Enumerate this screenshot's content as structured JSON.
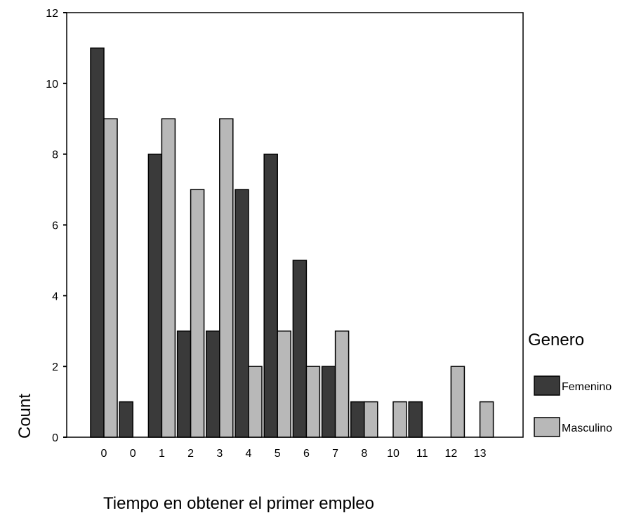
{
  "chart_data": {
    "type": "bar",
    "xlabel": "Tiempo en obtener el primer empleo",
    "ylabel": "Count",
    "ylim": [
      0,
      12
    ],
    "yticks": [
      0,
      2,
      4,
      6,
      8,
      10,
      12
    ],
    "grid": false,
    "categories": [
      "0",
      "0",
      "1",
      "2",
      "3",
      "4",
      "5",
      "6",
      "7",
      "8",
      "10",
      "11",
      "12",
      "13"
    ],
    "series": [
      {
        "name": "Femenino",
        "color": "#3a3a3a",
        "values": [
          11,
          1,
          8,
          3,
          3,
          7,
          8,
          5,
          2,
          1,
          0,
          1,
          0,
          0
        ]
      },
      {
        "name": "Masculino",
        "color": "#b8b8b8",
        "values": [
          9,
          0,
          9,
          7,
          9,
          2,
          3,
          2,
          3,
          1,
          1,
          0,
          2,
          1
        ]
      }
    ],
    "legend": {
      "title": "Genero",
      "position": "right"
    }
  }
}
